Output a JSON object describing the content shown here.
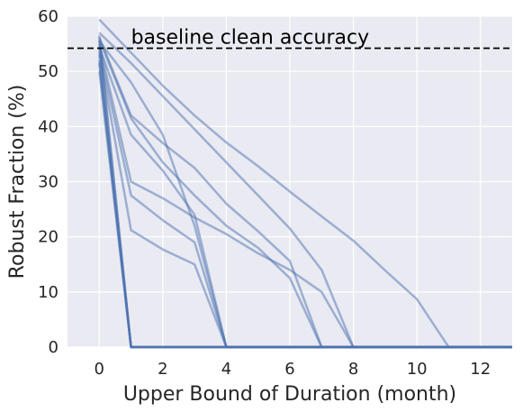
{
  "chart_data": {
    "type": "line",
    "xlabel": "Upper Bound of Duration (month)",
    "ylabel": "Robust Fraction (%)",
    "xlim": [
      -1.0,
      13.0
    ],
    "ylim": [
      0,
      60
    ],
    "xticks": [
      0,
      2,
      4,
      6,
      8,
      10,
      12
    ],
    "yticks": [
      0,
      10,
      20,
      30,
      40,
      50,
      60
    ],
    "grid": true,
    "background": "#eaeaf2",
    "grid_color": "#ffffff",
    "line_color": "#4c72b0",
    "line_alpha": 0.5,
    "baseline": {
      "value": 54.2,
      "label": "baseline clean accuracy",
      "color": "#000000",
      "style": "dashed"
    },
    "series": [
      {
        "x": [
          0,
          1,
          2,
          3,
          4,
          5,
          6,
          7,
          8,
          9,
          10,
          11,
          12,
          13
        ],
        "values": [
          59.4,
          53.4,
          47.4,
          42.0,
          37.1,
          32.8,
          28.2,
          23.7,
          19.3,
          13.9,
          8.7,
          0,
          0,
          0
        ]
      },
      {
        "x": [
          0,
          1,
          2,
          3,
          4,
          5,
          6,
          7,
          8,
          9,
          10,
          11,
          12,
          13
        ],
        "values": [
          57.0,
          51.5,
          45.5,
          39.5,
          33.5,
          27.5,
          21.5,
          14.0,
          0,
          0,
          0,
          0,
          0,
          0
        ]
      },
      {
        "x": [
          0,
          1,
          2,
          3,
          4,
          5,
          6,
          7,
          8,
          9,
          10,
          11,
          12,
          13
        ],
        "values": [
          56.2,
          42.0,
          37.0,
          32.5,
          26.0,
          21.0,
          15.6,
          0,
          0,
          0,
          0,
          0,
          0,
          0
        ]
      },
      {
        "x": [
          0,
          1,
          2,
          3,
          4,
          5,
          6,
          7,
          8,
          9,
          10,
          11,
          12,
          13
        ],
        "values": [
          55.8,
          41.5,
          33.5,
          27.5,
          22.0,
          18.0,
          12.5,
          0,
          0,
          0,
          0,
          0,
          0,
          0
        ]
      },
      {
        "x": [
          0,
          1,
          2,
          3,
          4,
          5,
          6,
          7,
          8,
          9,
          10,
          11,
          12,
          13
        ],
        "values": [
          55.0,
          30.0,
          27.0,
          23.5,
          20.5,
          17.0,
          14.0,
          10.0,
          0,
          0,
          0,
          0,
          0,
          0
        ]
      },
      {
        "x": [
          0,
          1,
          2,
          3,
          4,
          5,
          6,
          7,
          8,
          9,
          10,
          11,
          12,
          13
        ],
        "values": [
          55.5,
          48.0,
          38.5,
          22.0,
          0,
          0,
          0,
          0,
          0,
          0,
          0,
          0,
          0,
          0
        ]
      },
      {
        "x": [
          0,
          1,
          2,
          3,
          4,
          5,
          6,
          7,
          8,
          9,
          10,
          11,
          12,
          13
        ],
        "values": [
          54.5,
          38.5,
          32.0,
          24.0,
          0,
          0,
          0,
          0,
          0,
          0,
          0,
          0,
          0,
          0
        ]
      },
      {
        "x": [
          0,
          1,
          2,
          3,
          4,
          5,
          6,
          7,
          8,
          9,
          10,
          11,
          12,
          13
        ],
        "values": [
          54.0,
          27.5,
          23.0,
          19.0,
          0,
          0,
          0,
          0,
          0,
          0,
          0,
          0,
          0,
          0
        ]
      },
      {
        "x": [
          0,
          1,
          2,
          3,
          4,
          5,
          6,
          7,
          8,
          9,
          10,
          11,
          12,
          13
        ],
        "values": [
          53.5,
          21.2,
          17.7,
          15.0,
          0,
          0,
          0,
          0,
          0,
          0,
          0,
          0,
          0,
          0
        ]
      },
      {
        "x": [
          0,
          1,
          2,
          3,
          4,
          5,
          6,
          7,
          8,
          9,
          10,
          11,
          12,
          13
        ],
        "values": [
          52.0,
          0,
          0,
          0,
          0,
          0,
          0,
          0,
          0,
          0,
          0,
          0,
          0,
          0
        ]
      },
      {
        "x": [
          0,
          1,
          2,
          3,
          4,
          5,
          6,
          7,
          8,
          9,
          10,
          11,
          12,
          13
        ],
        "values": [
          50.0,
          0,
          0,
          0,
          0,
          0,
          0,
          0,
          0,
          0,
          0,
          0,
          0,
          0
        ]
      },
      {
        "x": [
          0,
          1,
          2,
          3,
          4,
          5,
          6,
          7,
          8,
          9,
          10,
          11,
          12,
          13
        ],
        "values": [
          56.5,
          0,
          0,
          0,
          0,
          0,
          0,
          0,
          0,
          0,
          0,
          0,
          0,
          0
        ]
      },
      {
        "x": [
          0,
          1,
          2,
          3,
          4,
          5,
          6,
          7,
          8,
          9,
          10,
          11,
          12,
          13
        ],
        "values": [
          55.5,
          0,
          0,
          0,
          0,
          0,
          0,
          0,
          0,
          0,
          0,
          0,
          0,
          0
        ]
      },
      {
        "x": [
          0,
          1,
          2,
          3,
          4,
          5,
          6,
          7,
          8,
          9,
          10,
          11,
          12,
          13
        ],
        "values": [
          53.0,
          0,
          0,
          0,
          0,
          0,
          0,
          0,
          0,
          0,
          0,
          0,
          0,
          0
        ]
      },
      {
        "x": [
          0,
          1,
          2,
          3,
          4,
          5,
          6,
          7,
          8,
          9,
          10,
          11,
          12,
          13
        ],
        "values": [
          51.5,
          0,
          0,
          0,
          0,
          0,
          0,
          0,
          0,
          0,
          0,
          0,
          0,
          0
        ]
      }
    ]
  }
}
